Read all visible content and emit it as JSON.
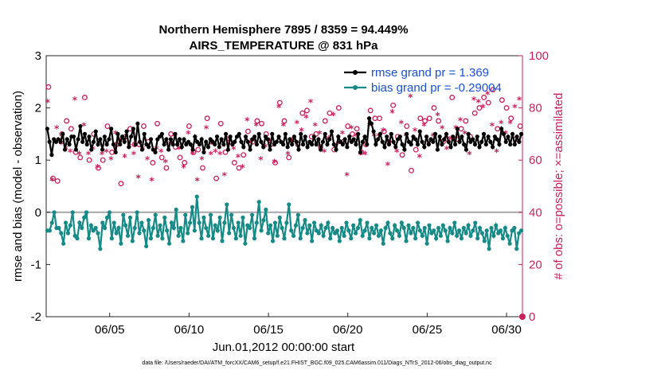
{
  "chart_data": {
    "type": "line",
    "title_line1": "Northern Hemisphere 7895 / 8359 = 94.449%",
    "title_line2": "AIRS_TEMPERATURE @ 831 hPa",
    "ylabel_left": "rmse and bias (model - observation)",
    "ylabel_right": "# of obs: o=possible; ×=assimilated",
    "xlabel": "Jun.01,2012 00:00:00 start",
    "footer": "data file: /Users/raeder/DAI/ATM_forcXX/CAM6_setup/f.e21.FHIST_BGC.f09_025.CAM6assim.011/Diags_NTrS_2012-06/obs_diag_output.nc",
    "ylim_left": [
      -2,
      3
    ],
    "ylim_right": [
      0,
      100
    ],
    "xlim_days": [
      1,
      31
    ],
    "yticks_left": [
      "3",
      "2",
      "1",
      "0",
      "-1",
      "-2"
    ],
    "yticks_right": [
      "100",
      "80",
      "60",
      "40",
      "20",
      "0"
    ],
    "xticks": [
      {
        "day": 5,
        "label": "06/05"
      },
      {
        "day": 10,
        "label": "06/10"
      },
      {
        "day": 15,
        "label": "06/15"
      },
      {
        "day": 20,
        "label": "06/20"
      },
      {
        "day": 25,
        "label": "06/25"
      },
      {
        "day": 30,
        "label": "06/30"
      }
    ],
    "legend": {
      "rmse": "rmse grand pr = 1.369",
      "bias": "bias grand pr = -0.29004"
    },
    "colors": {
      "rmse": "#000000",
      "bias": "#158a86",
      "obs": "#cc1f5b",
      "legend_text": "#1a4fd6"
    },
    "rmse": [
      1.6,
      1.35,
      1.1,
      1.4,
      1.35,
      1.4,
      1.35,
      1.5,
      1.2,
      1.4,
      1.3,
      1.45,
      1.45,
      1.2,
      1.4,
      1.65,
      1.35,
      1.5,
      1.3,
      1.45,
      1.2,
      1.35,
      1.55,
      1.3,
      1.4,
      1.2,
      1.45,
      1.3,
      1.4,
      1.6,
      1.3,
      1.15,
      1.5,
      1.3,
      1.45,
      1.35,
      1.55,
      1.25,
      1.45,
      1.6,
      1.3,
      1.7,
      1.35,
      1.2,
      1.5,
      1.3,
      1.25,
      1.4,
      1.2,
      1.15,
      1.4,
      1.45,
      1.5,
      1.3,
      1.4,
      1.2,
      1.4,
      1.3,
      1.5,
      1.3,
      1.4,
      1.25,
      1.4,
      1.3,
      1.35,
      1.3,
      1.2,
      1.45,
      1.35,
      1.3,
      1.4,
      1.15,
      1.35,
      1.25,
      1.4,
      1.35,
      1.3,
      1.45,
      1.25,
      1.4,
      1.3,
      1.5,
      1.2,
      1.45,
      1.3,
      1.35,
      1.45,
      1.5,
      1.35,
      1.25,
      1.45,
      1.35,
      1.2,
      1.4,
      1.45,
      1.3,
      1.5,
      1.35,
      1.25,
      1.45,
      1.4,
      1.2,
      1.5,
      1.3,
      1.35,
      1.45,
      1.35,
      1.3,
      1.5,
      1.25,
      1.4,
      1.3,
      1.45,
      1.35,
      1.2,
      1.5,
      1.3,
      1.45,
      1.25,
      1.35,
      1.3,
      1.45,
      1.3,
      1.4,
      1.2,
      1.35,
      1.5,
      1.3,
      1.4,
      1.55,
      1.3,
      1.2,
      1.45,
      1.35,
      1.3,
      1.4,
      1.25,
      1.45,
      1.35,
      1.4,
      1.3,
      1.5,
      1.15,
      1.35,
      1.45,
      1.3,
      1.8,
      1.7,
      1.55,
      1.3,
      1.4,
      1.5,
      1.35,
      1.25,
      1.45,
      1.3,
      1.5,
      1.35,
      1.25,
      1.4,
      1.45,
      1.3,
      1.2,
      1.5,
      1.35,
      1.3,
      1.45,
      1.4,
      1.3,
      1.55,
      1.35,
      1.25,
      1.45,
      1.3,
      1.4,
      1.35,
      1.5,
      1.2,
      1.45,
      1.3,
      1.4,
      1.5,
      1.35,
      1.25,
      1.45,
      1.3,
      1.6,
      1.35,
      1.45,
      1.3,
      1.2,
      1.5,
      1.35,
      1.4,
      1.3,
      1.45,
      1.25,
      1.35,
      1.5,
      1.3,
      1.45,
      1.35,
      1.25,
      1.45,
      1.4,
      1.3,
      1.6,
      1.5,
      1.35,
      1.45,
      1.3,
      1.5,
      1.3,
      1.45,
      1.35,
      1.5
    ],
    "bias": [
      -0.35,
      -0.35,
      -0.2,
      0.0,
      -0.3,
      -0.3,
      -0.4,
      -0.6,
      -0.2,
      -0.4,
      -0.25,
      0.0,
      -0.45,
      -0.5,
      -0.2,
      -0.3,
      -0.1,
      0.0,
      -0.5,
      -0.25,
      -0.35,
      -0.3,
      -0.4,
      -0.7,
      -0.2,
      -0.3,
      -0.1,
      0.0,
      -0.5,
      -0.2,
      -0.4,
      -0.3,
      -0.6,
      -0.05,
      -0.25,
      -0.45,
      -0.1,
      -0.55,
      -0.3,
      0.0,
      -0.4,
      -0.2,
      -0.35,
      -0.65,
      -0.15,
      -0.5,
      -0.3,
      -0.05,
      -0.45,
      -0.25,
      -0.5,
      -0.1,
      -0.35,
      -0.6,
      -0.2,
      -0.3,
      0.05,
      -0.45,
      -0.3,
      -0.55,
      -0.05,
      -0.4,
      -0.2,
      0.1,
      -0.35,
      0.3,
      -0.2,
      -0.5,
      -0.1,
      -0.3,
      -0.45,
      -0.05,
      -0.5,
      -0.25,
      -0.35,
      -0.1,
      -0.55,
      -0.2,
      0.15,
      -0.4,
      -0.05,
      -0.3,
      -0.5,
      -0.2,
      -0.45,
      -0.1,
      -0.6,
      -0.25,
      -0.3,
      -0.05,
      -0.5,
      -0.2,
      0.2,
      -0.35,
      -0.15,
      0.05,
      -0.4,
      -0.25,
      -0.55,
      -0.2,
      -0.45,
      -0.1,
      -0.3,
      -0.5,
      -0.2,
      0.15,
      -0.35,
      -0.45,
      -0.25,
      -0.05,
      -0.5,
      -0.3,
      -0.15,
      -0.4,
      -0.25,
      -0.55,
      -0.2,
      -0.35,
      -0.4,
      -0.25,
      -0.45,
      -0.3,
      -0.2,
      -0.5,
      -0.3,
      -0.4,
      -0.35,
      -0.55,
      -0.3,
      -0.45,
      -0.2,
      -0.35,
      -0.5,
      -0.25,
      -0.4,
      -0.3,
      -0.15,
      -0.45,
      -0.35,
      -0.2,
      -0.5,
      -0.3,
      -0.4,
      -0.25,
      -0.45,
      -0.35,
      -0.6,
      -0.3,
      -0.2,
      -0.4,
      -0.5,
      -0.25,
      -0.35,
      -0.45,
      -0.2,
      -0.3,
      -0.55,
      -0.25,
      -0.4,
      -0.3,
      -0.5,
      -0.2,
      -0.35,
      -0.45,
      -0.3,
      -0.6,
      -0.25,
      -0.4,
      -0.35,
      -0.5,
      -0.3,
      -0.45,
      -0.25,
      -0.35,
      -0.55,
      -0.3,
      -0.4,
      -0.2,
      -0.45,
      -0.35,
      -0.5,
      -0.3,
      -0.4,
      -0.25,
      -0.45,
      -0.35,
      -0.2,
      -0.5,
      -0.3,
      -0.4,
      -0.55,
      -0.35,
      -0.7,
      -0.3,
      -0.45,
      -0.25,
      -0.4,
      -0.35,
      -0.5,
      -0.3,
      -0.45,
      -0.6,
      -0.35,
      -0.3,
      -0.7,
      -0.4,
      -0.35
    ],
    "obs_possible": [
      88,
      53,
      52,
      70,
      75,
      72,
      63,
      61,
      84,
      60,
      70,
      57,
      60,
      73,
      63,
      66,
      51,
      69,
      72,
      66,
      66,
      73,
      67,
      59,
      74,
      61,
      57,
      70,
      65,
      61,
      59,
      73,
      63,
      64,
      57,
      76,
      67,
      53,
      74,
      63,
      67,
      59,
      57,
      62,
      71,
      67,
      75,
      74,
      70,
      66,
      59,
      82,
      75,
      61,
      68,
      66,
      78,
      79,
      69,
      70,
      65,
      75,
      78,
      64,
      80,
      67,
      73,
      70,
      72,
      63,
      66,
      79,
      76,
      76,
      71,
      67,
      81,
      69,
      62,
      73,
      56,
      64,
      76,
      75,
      76,
      80,
      75,
      67,
      68,
      84,
      68,
      72,
      75,
      69,
      78,
      80,
      84,
      82,
      87,
      72,
      83,
      80,
      76,
      68,
      73
    ],
    "obs_assimilated": [
      82,
      52,
      72,
      66,
      64,
      63,
      83,
      62,
      73,
      62,
      64,
      57,
      62,
      63,
      60,
      70,
      67,
      61,
      65,
      62,
      53,
      64,
      60,
      52,
      64,
      63,
      59,
      66,
      69,
      64,
      57,
      70,
      62,
      52,
      60,
      72,
      62,
      63,
      62,
      54,
      68,
      64,
      61,
      57,
      75,
      67,
      73,
      60,
      65,
      67,
      59,
      80,
      73,
      62,
      67,
      74,
      71,
      76,
      82,
      73,
      70,
      63,
      68,
      77,
      66,
      70,
      54,
      72,
      69,
      62,
      62,
      73,
      69,
      69,
      71,
      58,
      78,
      63,
      74,
      69,
      84,
      71,
      61,
      73,
      66,
      69,
      77,
      72,
      64,
      68,
      72,
      75,
      70,
      62,
      83,
      82,
      80,
      85,
      73,
      63,
      74,
      70,
      74,
      80,
      83
    ]
  }
}
